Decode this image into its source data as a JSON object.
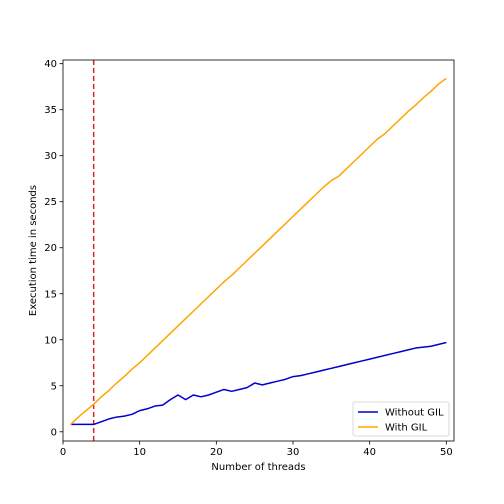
{
  "chart_data": {
    "type": "line",
    "title": "",
    "xlabel": "Number of threads",
    "ylabel": "Execution time in seconds",
    "xlim": [
      0,
      51
    ],
    "ylim": [
      -1,
      40.4
    ],
    "xticks": [
      0,
      10,
      20,
      30,
      40,
      50
    ],
    "yticks": [
      0,
      5,
      10,
      15,
      20,
      25,
      30,
      35,
      40
    ],
    "grid": false,
    "legend_position": "bottom-right",
    "vline": {
      "x": 4,
      "color": "#d62728",
      "style": "dashed"
    },
    "series": [
      {
        "name": "Without GIL",
        "color": "#0000cc",
        "x": [
          1,
          2,
          3,
          4,
          5,
          6,
          7,
          8,
          9,
          10,
          11,
          12,
          13,
          14,
          15,
          16,
          17,
          18,
          19,
          20,
          21,
          22,
          23,
          24,
          25,
          26,
          27,
          28,
          29,
          30,
          31,
          32,
          33,
          34,
          35,
          36,
          37,
          38,
          39,
          40,
          41,
          42,
          43,
          44,
          45,
          46,
          47,
          48,
          49,
          50
        ],
        "values": [
          0.8,
          0.8,
          0.8,
          0.8,
          1.1,
          1.4,
          1.6,
          1.7,
          1.9,
          2.3,
          2.5,
          2.8,
          2.9,
          3.5,
          4.0,
          3.5,
          4.0,
          3.8,
          4.0,
          4.3,
          4.6,
          4.4,
          4.6,
          4.8,
          5.3,
          5.1,
          5.3,
          5.5,
          5.7,
          6.0,
          6.1,
          6.3,
          6.5,
          6.7,
          6.9,
          7.1,
          7.3,
          7.5,
          7.7,
          7.9,
          8.1,
          8.3,
          8.5,
          8.7,
          8.9,
          9.1,
          9.2,
          9.3,
          9.5,
          9.7
        ]
      },
      {
        "name": "With GIL",
        "color": "#ffa500",
        "x": [
          1,
          2,
          3,
          4,
          5,
          6,
          7,
          8,
          9,
          10,
          11,
          12,
          13,
          14,
          15,
          16,
          17,
          18,
          19,
          20,
          21,
          22,
          23,
          24,
          25,
          26,
          27,
          28,
          29,
          30,
          31,
          32,
          33,
          34,
          35,
          36,
          37,
          38,
          39,
          40,
          41,
          42,
          43,
          44,
          45,
          46,
          47,
          48,
          49,
          50
        ],
        "values": [
          0.8,
          1.6,
          2.3,
          3.0,
          3.8,
          4.5,
          5.3,
          6.0,
          6.8,
          7.5,
          8.3,
          9.1,
          9.9,
          10.7,
          11.5,
          12.3,
          13.1,
          13.9,
          14.7,
          15.5,
          16.3,
          17.0,
          17.8,
          18.6,
          19.4,
          20.2,
          21.0,
          21.8,
          22.6,
          23.4,
          24.2,
          25.0,
          25.8,
          26.6,
          27.3,
          27.8,
          28.6,
          29.4,
          30.2,
          31.0,
          31.8,
          32.4,
          33.2,
          34.0,
          34.8,
          35.5,
          36.3,
          37.0,
          37.8,
          38.4
        ]
      }
    ]
  }
}
